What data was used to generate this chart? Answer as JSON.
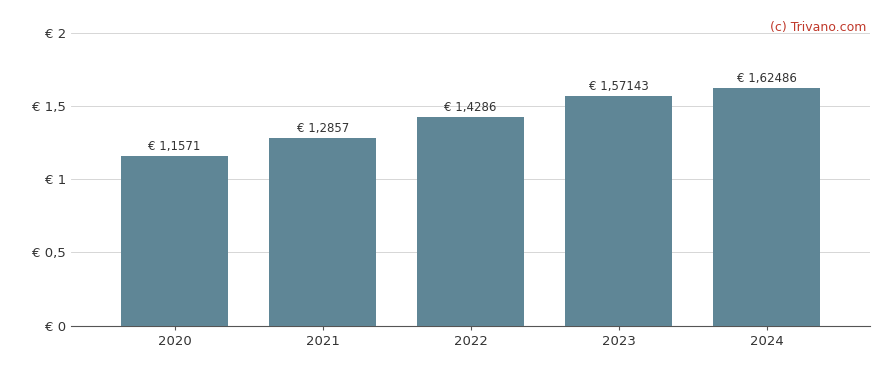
{
  "years": [
    2020,
    2021,
    2022,
    2023,
    2024
  ],
  "values": [
    1.1571,
    1.2857,
    1.4286,
    1.57143,
    1.62486
  ],
  "labels": [
    "€ 1,1571",
    "€ 1,2857",
    "€ 1,4286",
    "€ 1,57143",
    "€ 1,62486"
  ],
  "bar_color": "#5f8696",
  "yticks": [
    0,
    0.5,
    1.0,
    1.5,
    2.0
  ],
  "ytick_labels": [
    "€ 0",
    "€ 0,5",
    "€ 1",
    "€ 1,5",
    "€ 2"
  ],
  "ylim": [
    0,
    2.15
  ],
  "background_color": "#ffffff",
  "grid_color": "#d0d0d0",
  "watermark": "(c) Trivano.com",
  "watermark_color": "#c0392b",
  "label_fontsize": 8.5,
  "tick_fontsize": 9.5,
  "watermark_fontsize": 9,
  "bar_width": 0.72
}
